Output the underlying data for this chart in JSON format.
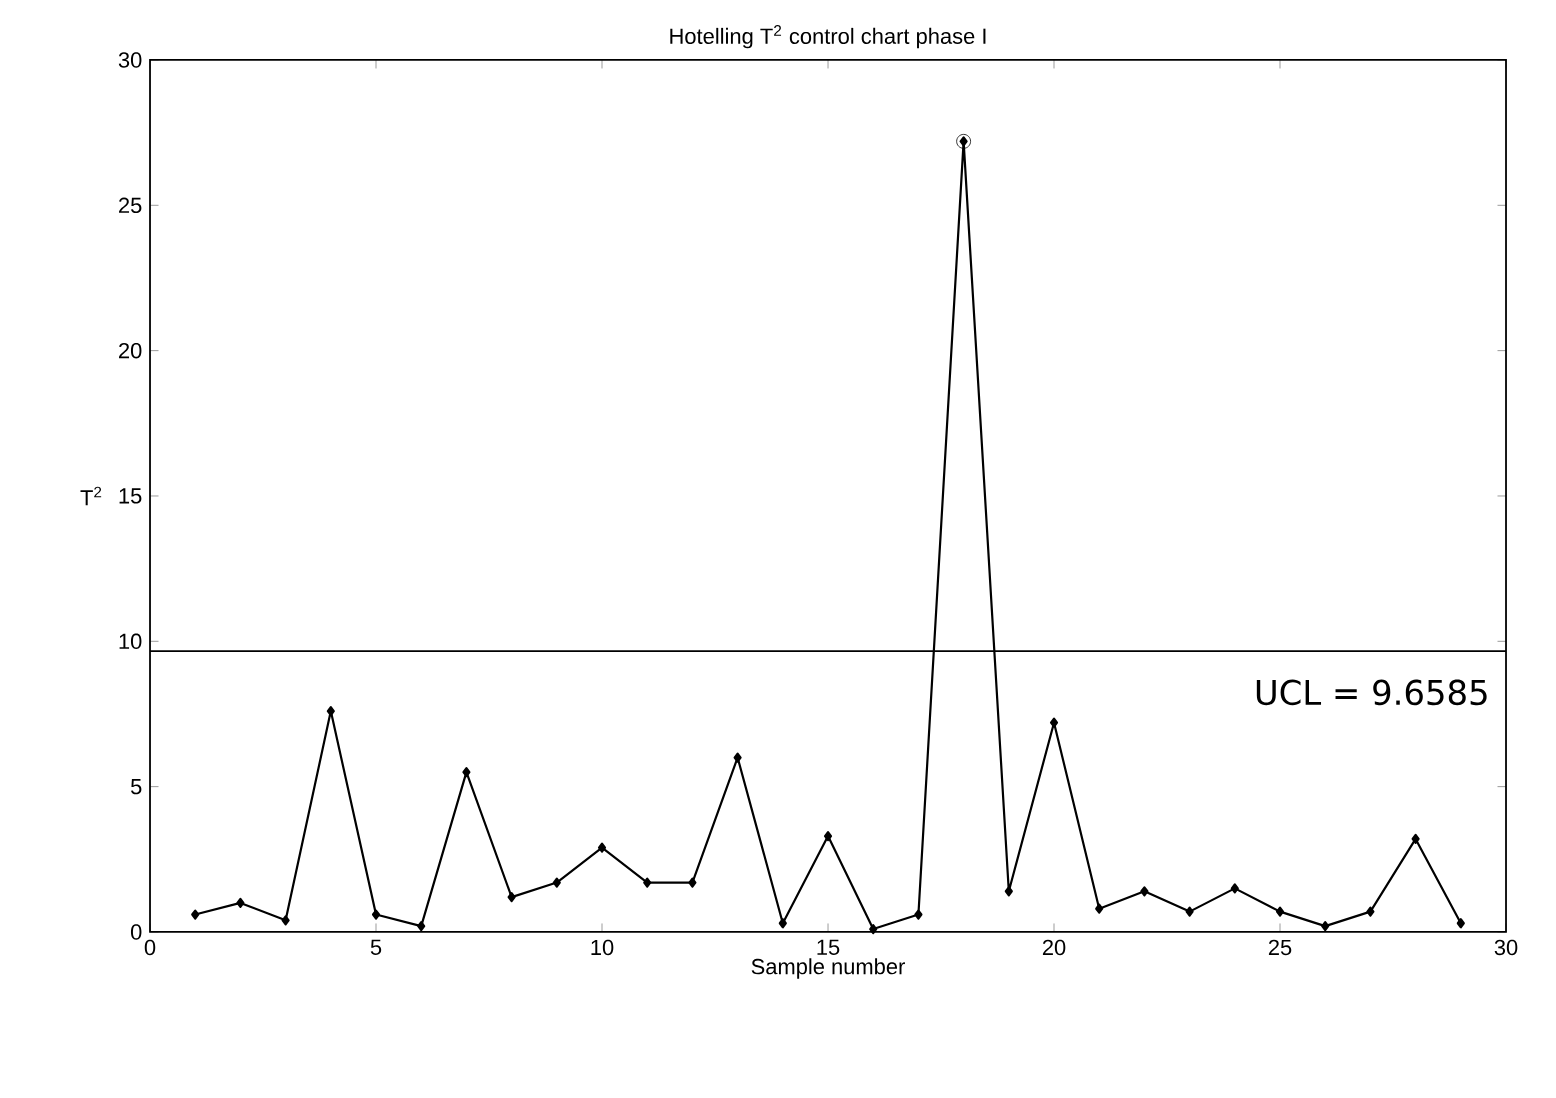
{
  "chart_data": {
    "type": "line",
    "title": "Hotelling T$^{2}$ control chart phase I",
    "xlabel": "Sample number",
    "ylabel": "T$^{2}$",
    "x": [
      1,
      2,
      3,
      4,
      5,
      6,
      7,
      8,
      9,
      10,
      11,
      12,
      13,
      14,
      15,
      16,
      17,
      18,
      19,
      20,
      21,
      22,
      23,
      24,
      25,
      26,
      27,
      28,
      29
    ],
    "series": [
      {
        "color": "#000000",
        "marker": "diamond",
        "values": [
          0.6,
          1.0,
          0.4,
          7.6,
          0.6,
          0.2,
          5.5,
          1.2,
          1.7,
          2.9,
          1.7,
          1.7,
          6.0,
          0.3,
          3.3,
          0.1,
          0.6,
          27.2,
          1.4,
          7.2,
          0.8,
          1.4,
          0.7,
          1.5,
          0.7,
          0.2,
          0.7,
          3.2,
          0.3
        ]
      },
      {
        "type": "scatter",
        "color": "#000000",
        "marker": "circle",
        "values": [
          null,
          null,
          null,
          null,
          null,
          null,
          null,
          null,
          null,
          null,
          null,
          null,
          null,
          null,
          null,
          null,
          null,
          27.2,
          null,
          null,
          null,
          null,
          null,
          null,
          null,
          null,
          null,
          null,
          null
        ]
      }
    ],
    "xlim": [
      0,
      30
    ],
    "ylim": [
      0,
      30
    ],
    "xticks": [
      0,
      5,
      10,
      15,
      20,
      25,
      30
    ],
    "yticks": [
      0,
      5,
      10,
      15,
      20,
      25,
      30
    ],
    "ref_lines": [
      {
        "axis": "y",
        "value": 9.6585,
        "label": "UCL = 9.6585",
        "color": "#000000"
      }
    ]
  }
}
